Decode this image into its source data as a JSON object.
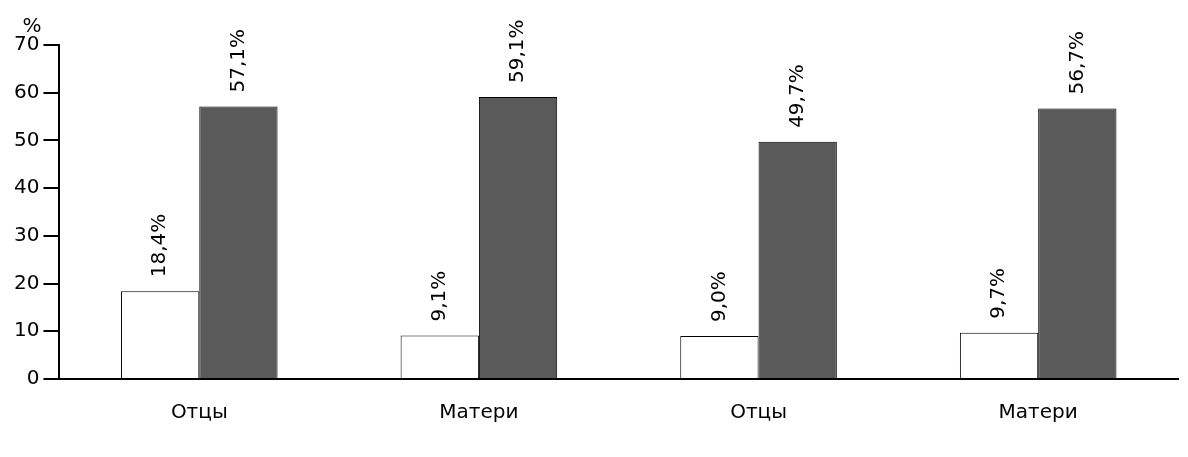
{
  "chart_data": {
    "type": "bar",
    "ylabel": "%",
    "categories": [
      "Отцы",
      "Матери",
      "Отцы",
      "Матери"
    ],
    "series": [
      {
        "color": "#ffffff",
        "values": [
          18.4,
          9.1,
          9.0,
          9.7
        ],
        "value_labels": [
          "18,4%",
          "9,1%",
          "9,0%",
          "9,7%"
        ]
      },
      {
        "color": "#5a5a5a",
        "values": [
          57.1,
          59.1,
          49.7,
          56.7
        ],
        "value_labels": [
          "57,1%",
          "59,1%",
          "49,7%",
          "56,7%"
        ]
      }
    ],
    "ylim": [
      0,
      70
    ],
    "yticks": [
      0,
      10,
      20,
      30,
      40,
      50,
      60,
      70
    ],
    "grid": false,
    "legend": false
  }
}
